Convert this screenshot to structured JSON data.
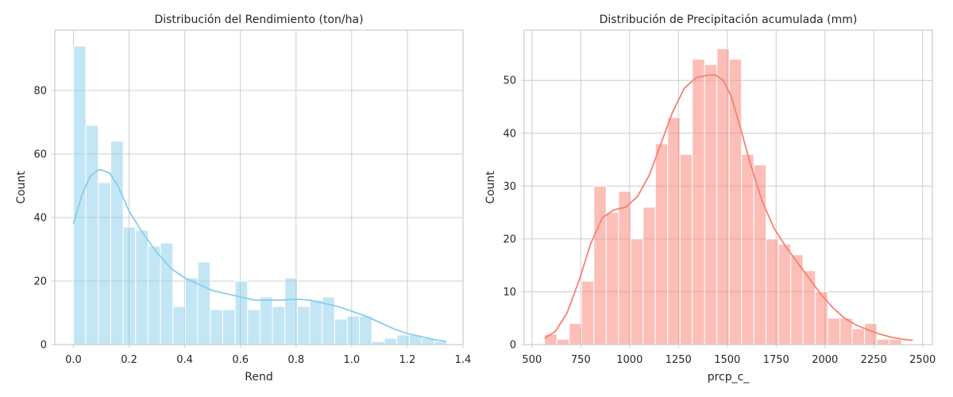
{
  "chart_data": [
    {
      "type": "histogram",
      "title": "Distribución del Rendimiento (ton/ha)",
      "xlabel": "Rend",
      "ylabel": "Count",
      "xlim": [
        -0.067,
        1.4
      ],
      "ylim": [
        0,
        99
      ],
      "xticks": [
        0.0,
        0.2,
        0.4,
        0.6,
        0.8,
        1.0,
        1.2,
        1.4
      ],
      "xtick_labels": [
        "0.0",
        "0.2",
        "0.4",
        "0.6",
        "0.8",
        "1.0",
        "1.2",
        "1.4"
      ],
      "yticks": [
        0,
        20,
        40,
        60,
        80
      ],
      "grid": true,
      "bar_color": "#87ceeb",
      "bins_start": 0.0,
      "bin_width": 0.0447,
      "counts": [
        94,
        69,
        51,
        64,
        37,
        36,
        31,
        32,
        12,
        21,
        26,
        11,
        11,
        20,
        11,
        15,
        12,
        21,
        12,
        14,
        15,
        8,
        9,
        9,
        1,
        2,
        3,
        3,
        2,
        1
      ],
      "kde": {
        "color": "#87ceeb",
        "x": [
          0.0,
          0.03,
          0.06,
          0.09,
          0.1,
          0.13,
          0.16,
          0.2,
          0.25,
          0.3,
          0.35,
          0.4,
          0.45,
          0.5,
          0.55,
          0.6,
          0.65,
          0.7,
          0.75,
          0.8,
          0.85,
          0.9,
          0.95,
          1.0,
          1.05,
          1.1,
          1.15,
          1.2,
          1.25,
          1.3,
          1.34
        ],
        "y": [
          38,
          47,
          53,
          55,
          55,
          54,
          50,
          42,
          35,
          29,
          24,
          21,
          19,
          17,
          16,
          15,
          14,
          14,
          14,
          14.3,
          14,
          13,
          12,
          10.5,
          9,
          7,
          5,
          3.5,
          2.5,
          1.5,
          1
        ]
      }
    },
    {
      "type": "histogram",
      "title": "Distribución de Precipitación acumulada (mm)",
      "xlabel": "prcp_c_",
      "ylabel": "Count",
      "xlim": [
        460,
        2550
      ],
      "ylim": [
        0,
        59.5
      ],
      "xticks": [
        500,
        750,
        1000,
        1250,
        1500,
        1750,
        2000,
        2250,
        2500
      ],
      "xtick_labels": [
        "500",
        "750",
        "1000",
        "1250",
        "1500",
        "1750",
        "2000",
        "2250",
        "2500"
      ],
      "yticks": [
        0,
        10,
        20,
        30,
        40,
        50
      ],
      "grid": true,
      "bar_color": "#fa8072",
      "bins_start": 565,
      "bin_width": 63,
      "counts": [
        2,
        1,
        4,
        12,
        30,
        25,
        29,
        20,
        26,
        38,
        43,
        36,
        54,
        53,
        56,
        54,
        36,
        34,
        20,
        19,
        17,
        14,
        10,
        5,
        5,
        3,
        4,
        1,
        1
      ],
      "kde": {
        "color": "#fa8072",
        "x": [
          565,
          620,
          680,
          740,
          800,
          860,
          920,
          980,
          1040,
          1100,
          1160,
          1220,
          1280,
          1340,
          1400,
          1440,
          1480,
          1520,
          1560,
          1620,
          1680,
          1740,
          1800,
          1860,
          1920,
          1980,
          2040,
          2100,
          2160,
          2220,
          2280,
          2340,
          2400,
          2450
        ],
        "y": [
          1.2,
          2.5,
          6,
          12,
          19,
          24,
          25.5,
          26,
          28,
          32,
          38,
          44,
          48.5,
          50.5,
          51,
          51,
          50,
          47,
          42,
          34,
          27,
          22,
          18.5,
          15.5,
          12.5,
          9.5,
          7,
          5,
          3.7,
          2.8,
          2,
          1.4,
          1.0,
          0.8
        ]
      }
    }
  ]
}
